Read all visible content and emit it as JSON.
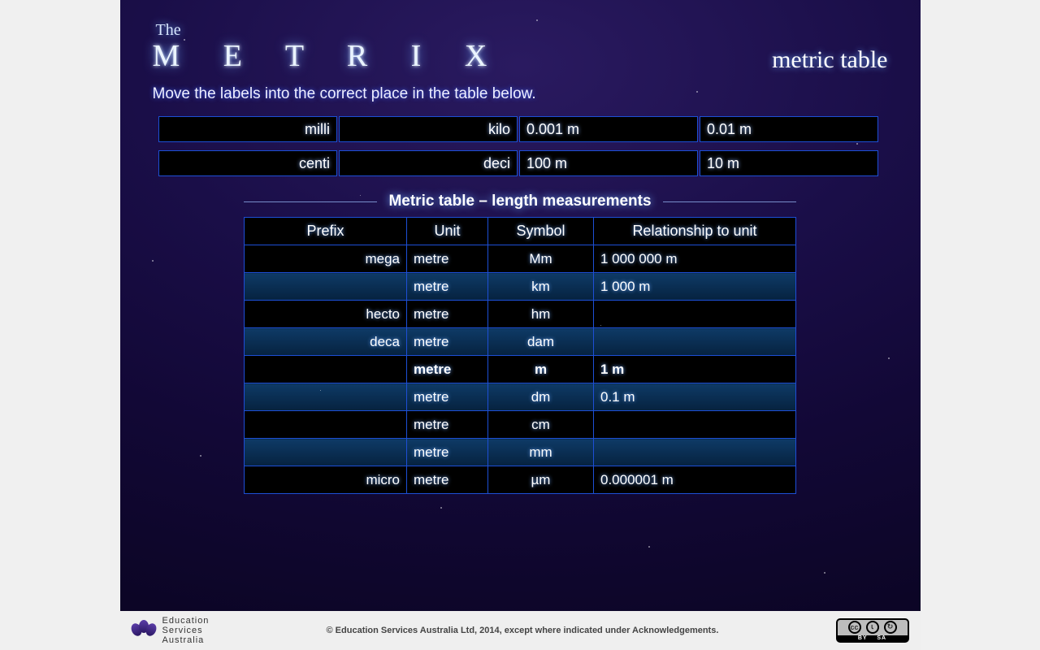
{
  "header": {
    "logo_small": "The",
    "logo_main": "M E T R I X",
    "subtitle": "metric table"
  },
  "instruction": "Move the labels into the correct place in the table below.",
  "label_bank": {
    "rows": [
      {
        "slots": [
          {
            "text": "milli",
            "align": "prefix"
          },
          {
            "text": "kilo",
            "align": "prefix"
          },
          {
            "text": "0.001 m",
            "align": "value"
          },
          {
            "text": "0.01 m",
            "align": "value"
          }
        ]
      },
      {
        "slots": [
          {
            "text": "centi",
            "align": "prefix"
          },
          {
            "text": "deci",
            "align": "prefix"
          },
          {
            "text": "100 m",
            "align": "value"
          },
          {
            "text": "10 m",
            "align": "value"
          }
        ]
      }
    ]
  },
  "table": {
    "title": "Metric table – length measurements",
    "columns": [
      "Prefix",
      "Unit",
      "Symbol",
      "Relationship to unit"
    ],
    "rows": [
      {
        "prefix": "mega",
        "unit": "metre",
        "symbol": "Mm",
        "rel": "1 000 000 m",
        "shade": false,
        "base": false
      },
      {
        "prefix": "",
        "unit": "metre",
        "symbol": "km",
        "rel": "1 000 m",
        "shade": true,
        "base": false
      },
      {
        "prefix": "hecto",
        "unit": "metre",
        "symbol": "hm",
        "rel": "",
        "shade": false,
        "base": false
      },
      {
        "prefix": "deca",
        "unit": "metre",
        "symbol": "dam",
        "rel": "",
        "shade": true,
        "base": false
      },
      {
        "prefix": "",
        "unit": "metre",
        "symbol": "m",
        "rel": "1 m",
        "shade": false,
        "base": true
      },
      {
        "prefix": "",
        "unit": "metre",
        "symbol": "dm",
        "rel": "0.1 m",
        "shade": true,
        "base": false
      },
      {
        "prefix": "",
        "unit": "metre",
        "symbol": "cm",
        "rel": "",
        "shade": false,
        "base": false
      },
      {
        "prefix": "",
        "unit": "metre",
        "symbol": "mm",
        "rel": "",
        "shade": true,
        "base": false
      },
      {
        "prefix": "micro",
        "unit": "metre",
        "symbol": "µm",
        "rel": "0.000001 m",
        "shade": false,
        "base": false
      }
    ]
  },
  "footer": {
    "org_line1": "Education",
    "org_line2": "Services",
    "org_line3": "Australia",
    "copyright": "© Education Services Australia Ltd, 2014, except where indicated under Acknowledgements.",
    "cc_by": "BY",
    "cc_sa": "SA"
  },
  "colors": {
    "border": "#1d4fd6",
    "bg_cell": "#000000",
    "shade_top": "#0e3a66",
    "shade_bottom": "#06223f",
    "glow": "#6aa6ff"
  }
}
